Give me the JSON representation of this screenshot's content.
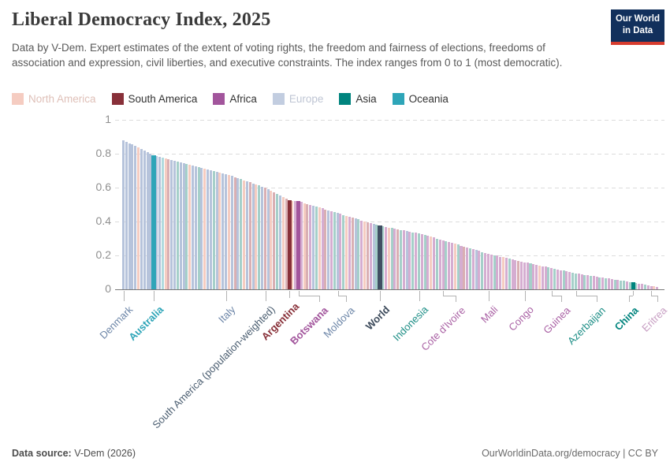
{
  "header": {
    "title": "Liberal Democracy Index, 2025",
    "subtitle": "Data by V-Dem. Expert estimates of the extent of voting rights, the freedom and fairness of elections, freedoms of association and expression, civil liberties, and executive constraints. The index ranges from 0 to 1 (most democratic).",
    "logo": {
      "line1": "Our World",
      "line2": "in Data"
    }
  },
  "legend": {
    "items": [
      {
        "label": "North America",
        "swatch": "#f5ccc1",
        "text_color": "#dfc0b8"
      },
      {
        "label": "South America",
        "swatch": "#883039",
        "text_color": "#333333"
      },
      {
        "label": "Africa",
        "swatch": "#a2559c",
        "text_color": "#333333"
      },
      {
        "label": "Europe",
        "swatch": "#c2cde0",
        "text_color": "#bfc6d4"
      },
      {
        "label": "Asia",
        "swatch": "#00847e",
        "text_color": "#333333"
      },
      {
        "label": "Oceania",
        "swatch": "#2ea5b8",
        "text_color": "#333333"
      }
    ]
  },
  "chart_data": {
    "type": "bar",
    "title": "Liberal Democracy Index, 2025",
    "xlabel": "",
    "ylabel": "",
    "ylim": [
      0,
      1
    ],
    "yticks": [
      0,
      0.2,
      0.4,
      0.6,
      0.8,
      1
    ],
    "grid": "dashed-horizontal",
    "legend_position": "top",
    "values": [
      0.88,
      0.87,
      0.862,
      0.855,
      0.846,
      0.838,
      0.83,
      0.82,
      0.81,
      0.8,
      0.79,
      0.786,
      0.781,
      0.777,
      0.772,
      0.768,
      0.763,
      0.758,
      0.754,
      0.749,
      0.745,
      0.74,
      0.735,
      0.731,
      0.726,
      0.722,
      0.717,
      0.712,
      0.708,
      0.703,
      0.699,
      0.694,
      0.689,
      0.685,
      0.68,
      0.674,
      0.668,
      0.662,
      0.655,
      0.649,
      0.643,
      0.637,
      0.631,
      0.625,
      0.618,
      0.612,
      0.606,
      0.6,
      0.591,
      0.581,
      0.572,
      0.563,
      0.553,
      0.544,
      0.534,
      0.525,
      0.523,
      0.522,
      0.52,
      0.515,
      0.509,
      0.504,
      0.499,
      0.493,
      0.488,
      0.482,
      0.477,
      0.472,
      0.466,
      0.461,
      0.455,
      0.45,
      0.445,
      0.439,
      0.434,
      0.429,
      0.423,
      0.418,
      0.412,
      0.407,
      0.402,
      0.396,
      0.391,
      0.386,
      0.38,
      0.375,
      0.372,
      0.368,
      0.365,
      0.361,
      0.358,
      0.354,
      0.351,
      0.347,
      0.344,
      0.34,
      0.337,
      0.333,
      0.33,
      0.325,
      0.32,
      0.315,
      0.31,
      0.305,
      0.3,
      0.295,
      0.29,
      0.285,
      0.279,
      0.274,
      0.269,
      0.263,
      0.258,
      0.253,
      0.247,
      0.242,
      0.237,
      0.231,
      0.226,
      0.221,
      0.215,
      0.21,
      0.206,
      0.202,
      0.198,
      0.193,
      0.189,
      0.185,
      0.181,
      0.177,
      0.173,
      0.168,
      0.164,
      0.16,
      0.156,
      0.152,
      0.148,
      0.144,
      0.141,
      0.137,
      0.133,
      0.129,
      0.125,
      0.121,
      0.118,
      0.114,
      0.11,
      0.106,
      0.103,
      0.099,
      0.095,
      0.092,
      0.089,
      0.086,
      0.083,
      0.081,
      0.078,
      0.075,
      0.072,
      0.069,
      0.066,
      0.063,
      0.06,
      0.057,
      0.055,
      0.052,
      0.049,
      0.046,
      0.043,
      0.04,
      0.037,
      0.034,
      0.031,
      0.028,
      0.024,
      0.021,
      0.018,
      0.015
    ],
    "regions": "EEEEENEEEEOEEONSEETEETNEETENEETENEENESETNESENTESENSTENSSNAAANSAETNASEATEATNASETANSAETWTANTASTAEATATATANATAATAANTASATAEATAAATAANATAASAAATAANAATATAATAATTAATATAATATAATATTATTTAATAANA",
    "region_map": {
      "E": "Europe",
      "N": "North America",
      "S": "South America",
      "A": "Africa",
      "T": "Asia",
      "O": "Oceania",
      "W": "World"
    },
    "region_colors": {
      "Europe": {
        "muted": "#b6c3db",
        "full": "#4c6a9c"
      },
      "North America": {
        "muted": "#f5ccc1",
        "full": "#e56e5a"
      },
      "South America": {
        "muted": "#d9afb3",
        "full": "#883039"
      },
      "Africa": {
        "muted": "#d5add1",
        "full": "#a2559c"
      },
      "Asia": {
        "muted": "#a5cfc9",
        "full": "#00847e"
      },
      "Oceania": {
        "muted": "#b0dade",
        "full": "#2ea5b8"
      },
      "World": {
        "muted": "#414f63",
        "full": "#414f63"
      }
    },
    "highlighted": {
      "10": "Australia",
      "55": "Argentina",
      "58": "Botswana",
      "85": "World",
      "169": "China"
    },
    "x_tick_labels": [
      {
        "i": 0,
        "label": "Denmark",
        "color": "#6d86a8",
        "bold": false,
        "off": 0,
        "len": 13
      },
      {
        "i": 10,
        "label": "Australia",
        "color": "#2ea5b8",
        "bold": true,
        "off": 0,
        "len": 13
      },
      {
        "i": 34,
        "label": "Italy",
        "color": "#6d86a8",
        "bold": false,
        "off": 0,
        "len": 13
      },
      {
        "i": 47,
        "label": "South America (population-weighted)",
        "color": "#4a5d70",
        "bold": false,
        "off": 0,
        "len": 13
      },
      {
        "i": 55,
        "label": "Argentina",
        "color": "#883039",
        "bold": true,
        "off": 0,
        "len": 9
      },
      {
        "i": 58,
        "label": "Botswana",
        "color": "#a2559c",
        "bold": true,
        "off": 26,
        "len": 13
      },
      {
        "i": 71,
        "label": "Moldova",
        "color": "#6d86a8",
        "bold": false,
        "off": 10,
        "len": 13
      },
      {
        "i": 85,
        "label": "World",
        "color": "#3c4a5b",
        "bold": true,
        "off": 0,
        "len": 13
      },
      {
        "i": 98,
        "label": "Indonesia",
        "color": "#1d8e86",
        "bold": false,
        "off": 0,
        "len": 13
      },
      {
        "i": 106,
        "label": "Cote d'Ivoire",
        "color": "#aa62a5",
        "bold": false,
        "off": 16,
        "len": 13
      },
      {
        "i": 121,
        "label": "Mali",
        "color": "#aa62a5",
        "bold": false,
        "off": 0,
        "len": 13
      },
      {
        "i": 133,
        "label": "Congo",
        "color": "#aa62a5",
        "bold": false,
        "off": 0,
        "len": 13
      },
      {
        "i": 142,
        "label": "Guinea",
        "color": "#aa62a5",
        "bold": false,
        "off": 12,
        "len": 13
      },
      {
        "i": 150,
        "label": "Azerbaijan",
        "color": "#1d8e86",
        "bold": false,
        "off": 26,
        "len": 13
      },
      {
        "i": 169,
        "label": "China",
        "color": "#00847e",
        "bold": true,
        "off": -5,
        "len": 13
      },
      {
        "i": 175,
        "label": "Eritrea",
        "color": "#c79fc3",
        "bold": false,
        "off": 8,
        "len": 13
      }
    ]
  },
  "footer": {
    "source_label": "Data source:",
    "source_value": " V-Dem (2026)",
    "right": "OurWorldinData.org/democracy | CC BY"
  }
}
